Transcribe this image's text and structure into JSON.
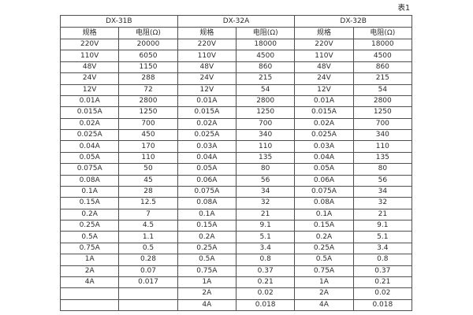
{
  "page": {
    "table_label": "表1"
  },
  "colors": {
    "background": "#ffffff",
    "border": "#4f4f4f",
    "text": "#2b2b2b"
  },
  "table": {
    "groups": [
      {
        "name": "DX-31B",
        "spec_header": "规格",
        "resistance_header": "电阻(Ω)"
      },
      {
        "name": "DX-32A",
        "spec_header": "规格",
        "resistance_header": "电阻(Ω)"
      },
      {
        "name": "DX-32B",
        "spec_header": "规格",
        "resistance_header": "电阻(Ω)"
      }
    ],
    "rows": [
      [
        "220V",
        "20000",
        "220V",
        "18000",
        "220V",
        "18000"
      ],
      [
        "110V",
        "6050",
        "110V",
        "4500",
        "110V",
        "4500"
      ],
      [
        "48V",
        "1150",
        "48V",
        "860",
        "48V",
        "860"
      ],
      [
        "24V",
        "288",
        "24V",
        "215",
        "24V",
        "215"
      ],
      [
        "12V",
        "72",
        "12V",
        "54",
        "12V",
        "54"
      ],
      [
        "0.01A",
        "2800",
        "0.01A",
        "2800",
        "0.01A",
        "2800"
      ],
      [
        "0.015A",
        "1250",
        "0.015A",
        "1250",
        "0.015A",
        "1250"
      ],
      [
        "0.02A",
        "700",
        "0.02A",
        "700",
        "0.02A",
        "700"
      ],
      [
        "0.025A",
        "450",
        "0.025A",
        "340",
        "0.025A",
        "340"
      ],
      [
        "0.04A",
        "170",
        "0.03A",
        "110",
        "0.03A",
        "110"
      ],
      [
        "0.05A",
        "110",
        "0.04A",
        "135",
        "0.04A",
        "135"
      ],
      [
        "0.075A",
        "50",
        "0.05A",
        "80",
        "0.05A",
        "80"
      ],
      [
        "0.08A",
        "45",
        "0.06A",
        "56",
        "0.06A",
        "56"
      ],
      [
        "0.1A",
        "28",
        "0.075A",
        "34",
        "0.075A",
        "34"
      ],
      [
        "0.15A",
        "12.5",
        "0.08A",
        "32",
        "0.08A",
        "32"
      ],
      [
        "0.2A",
        "7",
        "0.1A",
        "21",
        "0.1A",
        "21"
      ],
      [
        "0.25A",
        "4.5",
        "0.15A",
        "9.1",
        "0.15A",
        "9.1"
      ],
      [
        "0.5A",
        "1.1",
        "0.2A",
        "5.1",
        "0.2A",
        "5.1"
      ],
      [
        "0.75A",
        "0.5",
        "0.25A",
        "3.4",
        "0.25A",
        "3.4"
      ],
      [
        "1A",
        "0.28",
        "0.5A",
        "0.8",
        "0.5A",
        "0.8"
      ],
      [
        "2A",
        "0.07",
        "0.75A",
        "0.37",
        "0.75A",
        "0.37"
      ],
      [
        "4A",
        "0.017",
        "1A",
        "0.21",
        "1A",
        "0.21"
      ],
      [
        "",
        "",
        "2A",
        "0.02",
        "2A",
        "0.02"
      ],
      [
        "",
        "",
        "4A",
        "0.018",
        "4A",
        "0.018"
      ]
    ]
  }
}
